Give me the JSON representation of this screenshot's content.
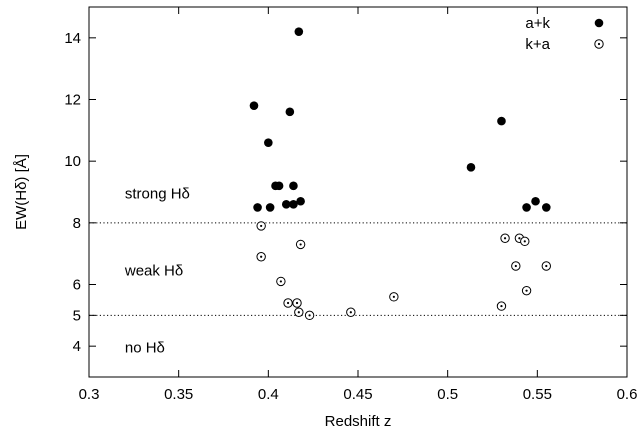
{
  "chart_data": {
    "type": "scatter",
    "title": "",
    "xlabel": "Redshift z",
    "ylabel": "EW(Hδ) [Å]",
    "xlim": [
      0.3,
      0.6
    ],
    "ylim": [
      3,
      15
    ],
    "xticks": [
      0.3,
      0.35,
      0.4,
      0.45,
      0.5,
      0.55,
      0.6
    ],
    "xtick_labels": [
      "0.3",
      "0.35",
      "0.4",
      "0.45",
      "0.5",
      "0.55",
      "0.6"
    ],
    "yticks": [
      4,
      5,
      6,
      8,
      10,
      12,
      14
    ],
    "ytick_labels": [
      "4",
      "5",
      "6",
      "8",
      "10",
      "12",
      "14"
    ],
    "grid": false,
    "legend_position": "top-right",
    "reference_lines": [
      {
        "y": 8,
        "style": "dotted"
      },
      {
        "y": 5,
        "style": "dotted"
      }
    ],
    "annotations": [
      {
        "text": "strong Hδ",
        "x": 0.32,
        "y": 8.95
      },
      {
        "text": "weak Hδ",
        "x": 0.32,
        "y": 6.45
      },
      {
        "text": "no Hδ",
        "x": 0.32,
        "y": 3.95
      }
    ],
    "series": [
      {
        "name": "a+k",
        "marker": "filled-circle",
        "color": "#000000",
        "points": [
          [
            0.392,
            11.8
          ],
          [
            0.394,
            8.5
          ],
          [
            0.4,
            10.6
          ],
          [
            0.401,
            8.5
          ],
          [
            0.404,
            9.2
          ],
          [
            0.406,
            9.2
          ],
          [
            0.41,
            8.6
          ],
          [
            0.412,
            11.6
          ],
          [
            0.414,
            9.2
          ],
          [
            0.414,
            8.6
          ],
          [
            0.417,
            14.2
          ],
          [
            0.418,
            8.7
          ],
          [
            0.513,
            9.8
          ],
          [
            0.53,
            11.3
          ],
          [
            0.544,
            8.5
          ],
          [
            0.549,
            8.7
          ],
          [
            0.555,
            8.5
          ]
        ]
      },
      {
        "name": "k+a",
        "marker": "open-circle-dot",
        "color": "#000000",
        "points": [
          [
            0.396,
            7.9
          ],
          [
            0.396,
            6.9
          ],
          [
            0.407,
            6.1
          ],
          [
            0.411,
            5.4
          ],
          [
            0.416,
            5.4
          ],
          [
            0.417,
            5.1
          ],
          [
            0.418,
            7.3
          ],
          [
            0.423,
            5.0
          ],
          [
            0.446,
            5.1
          ],
          [
            0.47,
            5.6
          ],
          [
            0.53,
            5.3
          ],
          [
            0.532,
            7.5
          ],
          [
            0.538,
            6.6
          ],
          [
            0.54,
            7.5
          ],
          [
            0.543,
            7.4
          ],
          [
            0.544,
            5.8
          ],
          [
            0.555,
            6.6
          ]
        ]
      }
    ]
  }
}
